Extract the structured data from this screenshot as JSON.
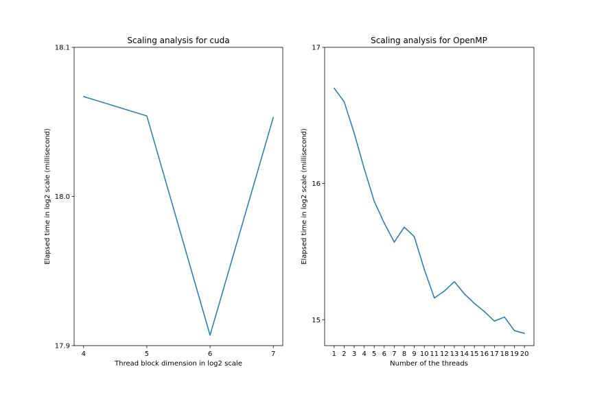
{
  "chart_data": [
    {
      "type": "line",
      "title": "Scaling analysis for cuda",
      "xlabel": "Thread block dimension in log2 scale",
      "ylabel": "Elapsed time in log2 scale (millisecond)",
      "x": [
        4,
        5,
        6,
        7
      ],
      "xticks": [
        "4",
        "5",
        "6",
        "7"
      ],
      "yticks": [
        "17.9",
        "18.0",
        "18.1"
      ],
      "xlim": [
        3.85,
        7.15
      ],
      "ylim": [
        17.9,
        18.1
      ],
      "series": [
        {
          "values": [
            18.067,
            18.054,
            17.907,
            18.053
          ],
          "color": "#1f77b4"
        }
      ],
      "grid": false
    },
    {
      "type": "line",
      "title": "Scaling analysis for OpenMP",
      "xlabel": "Number of the threads",
      "ylabel": "Elapsed time in log2 scale (millisecond)",
      "x": [
        1,
        2,
        3,
        4,
        5,
        6,
        7,
        8,
        9,
        10,
        11,
        12,
        13,
        14,
        15,
        16,
        17,
        18,
        19,
        20
      ],
      "xticks": [
        "1",
        "2",
        "3",
        "4",
        "5",
        "6",
        "7",
        "8",
        "9",
        "10",
        "11",
        "12",
        "13",
        "14",
        "15",
        "16",
        "17",
        "18",
        "19",
        "20"
      ],
      "yticks": [
        "15",
        "16",
        "17"
      ],
      "xlim": [
        0.05,
        20.95
      ],
      "ylim": [
        14.81,
        17.0
      ],
      "series": [
        {
          "values": [
            16.7,
            16.6,
            16.37,
            16.11,
            15.87,
            15.71,
            15.57,
            15.68,
            15.61,
            15.37,
            15.16,
            15.21,
            15.28,
            15.19,
            15.12,
            15.06,
            14.99,
            15.02,
            14.92,
            14.9
          ],
          "color": "#1f77b4"
        }
      ],
      "grid": false
    }
  ]
}
